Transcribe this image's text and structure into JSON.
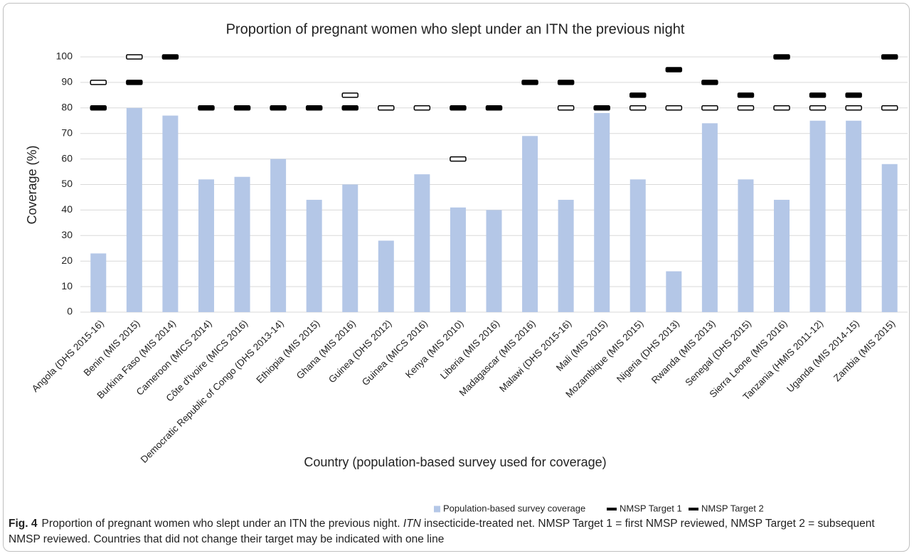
{
  "chart_data": {
    "type": "bar",
    "title": "Proportion of pregnant women who slept under an ITN the previous night",
    "y_label": "Coverage (%)",
    "x_label": "Country (population-based survey used for coverage)",
    "categories": [
      "Angola (DHS 2015-16)",
      "Benin  (MIS 2015)",
      "Burkina Faso  (MIS 2014)",
      "Cameroon  (MICS 2014)",
      "Côte d'Ivoire  (MICS 2016)",
      "Democratic Republic of Congo  (DHS 2013-14)",
      "Ethiopia  (MIS 2015)",
      "Ghana  (MIS 2016)",
      "Guinea  (DHS 2012)",
      "Guinea  (MICS 2016)",
      "Kenya  (MIS 2010)",
      "Liberia  (MIS 2016)",
      "Madagascar  (MIS 2016)",
      "Malawi  (DHS 2015-16)",
      "Mali  (MIS 2015)",
      "Mozambique  (MIS 2015)",
      "Nigeria  (DHS 2013)",
      "Rwanda  (MIS 2013)",
      "Senegal  (DHS 2015)",
      "Sierra Leone  (MIS 2016)",
      "Tanzania  (HMIS 2011-12)",
      "Uganda  (MIS 2014-15)",
      "Zambia  (MIS 2015)"
    ],
    "series": [
      {
        "name": "Population-based survey coverage",
        "color": "#b4c7e7",
        "mark": "bar",
        "values": [
          23,
          80,
          77,
          52,
          53,
          60,
          44,
          50,
          28,
          54,
          41,
          40,
          69,
          44,
          78,
          52,
          16,
          74,
          52,
          44,
          75,
          75,
          58
        ]
      },
      {
        "name": "NMSP Target 1",
        "color": "#000000",
        "mark": "hollow-dash",
        "values": [
          90,
          100,
          null,
          null,
          null,
          null,
          null,
          85,
          80,
          80,
          60,
          null,
          null,
          80,
          null,
          80,
          80,
          80,
          80,
          80,
          80,
          80,
          80
        ]
      },
      {
        "name": "NMSP Target 2",
        "color": "#000000",
        "mark": "solid-dash",
        "values": [
          80,
          90,
          100,
          80,
          80,
          80,
          80,
          80,
          null,
          null,
          80,
          80,
          90,
          90,
          80,
          85,
          95,
          90,
          85,
          100,
          85,
          85,
          100
        ]
      }
    ],
    "ylim": [
      0,
      100
    ],
    "yticks": [
      0,
      10,
      20,
      30,
      40,
      50,
      60,
      70,
      80,
      90,
      100
    ],
    "grid": true,
    "legend": "bottom"
  },
  "caption": {
    "label": "Fig. 4",
    "parts": [
      "Proportion of pregnant women who slept under an ITN the previous night.",
      "ITN",
      "insecticide-treated net. NMSP Target 1 = first NMSP reviewed, NMSP Target 2 = subsequent NMSP reviewed. Countries that did not change their target may be indicated with one line"
    ]
  }
}
